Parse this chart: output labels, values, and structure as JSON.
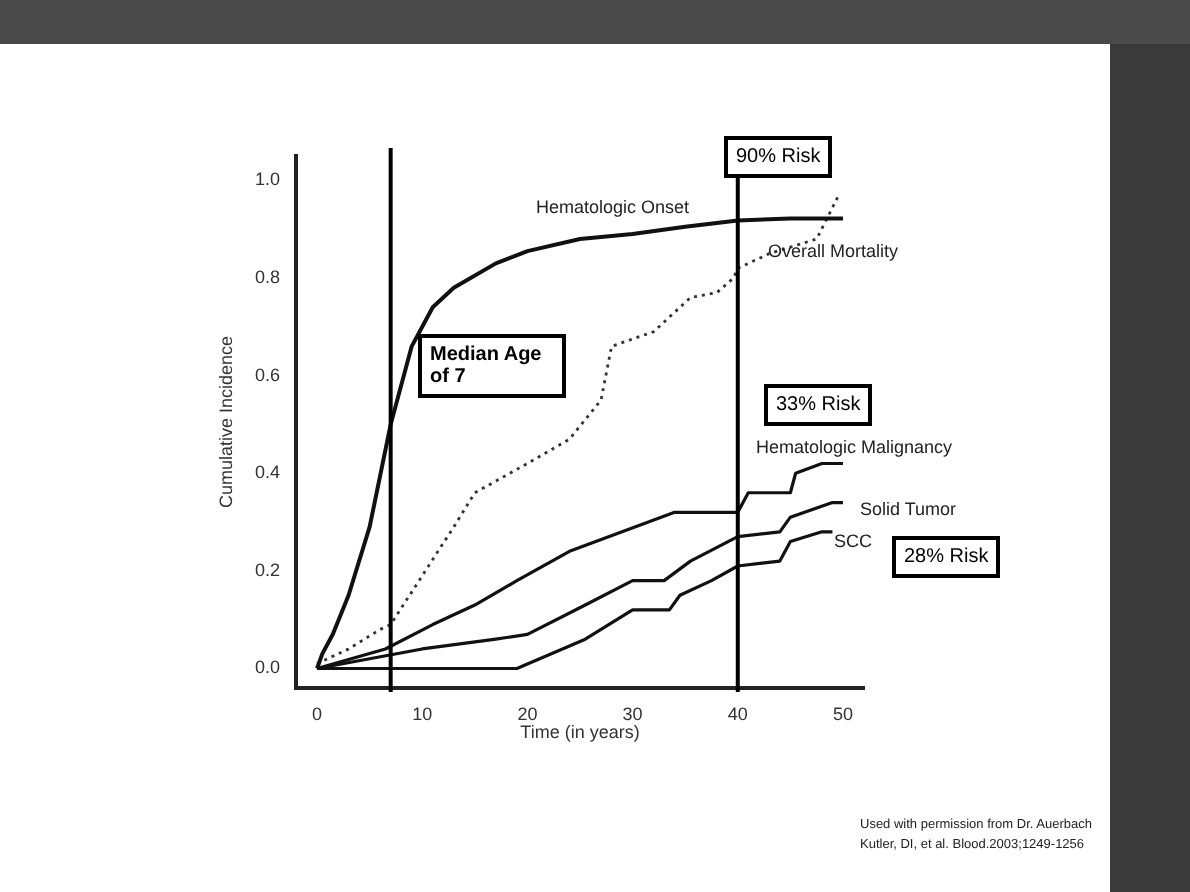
{
  "chart_data": {
    "type": "line",
    "xlabel": "Time (in years)",
    "ylabel": "Cumulative Incidence",
    "xlim": [
      -2,
      52
    ],
    "ylim": [
      -0.04,
      1.05
    ],
    "xticks": [
      0,
      10,
      20,
      30,
      40,
      50
    ],
    "yticks": [
      {
        "value": 0,
        "label": "0.0"
      },
      {
        "value": 0.2,
        "label": "0.2"
      },
      {
        "value": 0.4,
        "label": "0.4"
      },
      {
        "value": 0.6,
        "label": "0.6"
      },
      {
        "value": 0.8,
        "label": "0.8"
      },
      {
        "value": 1,
        "label": "1.0"
      }
    ],
    "grid": false,
    "legend": false,
    "marker": "none",
    "series": [
      {
        "name": "Hematologic Onset",
        "color": "#111111",
        "line_style": "solid",
        "x": [
          0,
          0.5,
          1.5,
          3,
          5,
          7,
          9,
          11,
          13,
          17,
          20,
          25,
          30,
          35,
          40,
          45,
          50
        ],
        "values": [
          0,
          0.03,
          0.07,
          0.15,
          0.29,
          0.5,
          0.66,
          0.74,
          0.78,
          0.83,
          0.855,
          0.88,
          0.89,
          0.905,
          0.918,
          0.922,
          0.922
        ]
      },
      {
        "name": "Overall Mortality",
        "color": "#333333",
        "line_style": "dotted",
        "x": [
          0,
          3,
          6,
          7,
          10,
          13,
          15,
          20,
          24,
          27,
          28,
          32,
          34,
          35.5,
          38,
          39.6,
          40,
          43,
          47.5,
          49.6
        ],
        "values": [
          0.01,
          0.04,
          0.08,
          0.09,
          0.19,
          0.29,
          0.36,
          0.42,
          0.47,
          0.55,
          0.66,
          0.69,
          0.73,
          0.76,
          0.77,
          0.8,
          0.82,
          0.85,
          0.88,
          0.97
        ]
      },
      {
        "name": "Hematologic Malignancy",
        "color": "#111111",
        "line_style": "solid",
        "x": [
          0,
          6.5,
          11,
          15,
          19,
          24,
          29,
          34,
          40,
          41,
          45,
          45.5,
          48,
          50
        ],
        "values": [
          0,
          0.04,
          0.09,
          0.13,
          0.18,
          0.24,
          0.28,
          0.32,
          0.32,
          0.36,
          0.36,
          0.4,
          0.42,
          0.42
        ]
      },
      {
        "name": "Solid Tumor",
        "color": "#111111",
        "line_style": "solid",
        "x": [
          0,
          10,
          17,
          20,
          25.5,
          30,
          33,
          35.5,
          40,
          44,
          45,
          49,
          50
        ],
        "values": [
          0,
          0.04,
          0.06,
          0.07,
          0.13,
          0.18,
          0.18,
          0.22,
          0.27,
          0.28,
          0.31,
          0.34,
          0.34
        ]
      },
      {
        "name": "SCC",
        "color": "#111111",
        "line_style": "solid",
        "x": [
          0,
          19,
          25.5,
          30,
          33.5,
          34.5,
          37.5,
          40,
          44,
          45,
          48,
          49
        ],
        "values": [
          0,
          0,
          0.06,
          0.12,
          0.12,
          0.15,
          0.18,
          0.21,
          0.22,
          0.26,
          0.28,
          0.28
        ]
      }
    ],
    "ref_lines": [
      {
        "axis": "x",
        "value": 7,
        "color": "#000000"
      },
      {
        "axis": "x",
        "value": 40,
        "color": "#000000"
      }
    ],
    "annotations": [
      "Median Age of 7",
      "90% Risk",
      "33% Risk",
      "28% Risk",
      "Used with permission from Dr. Auerbach",
      "Kutler, DI, et al.  Blood.2003;1249-1256"
    ]
  }
}
